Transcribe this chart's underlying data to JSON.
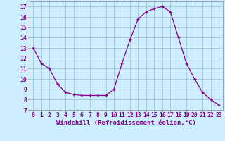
{
  "x": [
    0,
    1,
    2,
    3,
    4,
    5,
    6,
    7,
    8,
    9,
    10,
    11,
    12,
    13,
    14,
    15,
    16,
    17,
    18,
    19,
    20,
    21,
    22,
    23
  ],
  "y": [
    13.0,
    11.5,
    11.0,
    9.5,
    8.7,
    8.5,
    8.4,
    8.4,
    8.4,
    8.4,
    9.0,
    11.5,
    13.8,
    15.8,
    16.5,
    16.8,
    17.0,
    16.5,
    14.0,
    11.5,
    10.0,
    8.7,
    8.0,
    7.5
  ],
  "line_color": "#880088",
  "marker": "+",
  "markersize": 3,
  "linewidth": 0.9,
  "bg_color": "#cceeff",
  "grid_color": "#99bbcc",
  "xlabel": "Windchill (Refroidissement éolien,°C)",
  "xlabel_fontsize": 6.5,
  "ylabel_ticks": [
    7,
    8,
    9,
    10,
    11,
    12,
    13,
    14,
    15,
    16,
    17
  ],
  "ylim": [
    7,
    17.5
  ],
  "xlim": [
    -0.5,
    23.5
  ],
  "tick_fontsize": 5.8,
  "xlabel_color": "#880088"
}
